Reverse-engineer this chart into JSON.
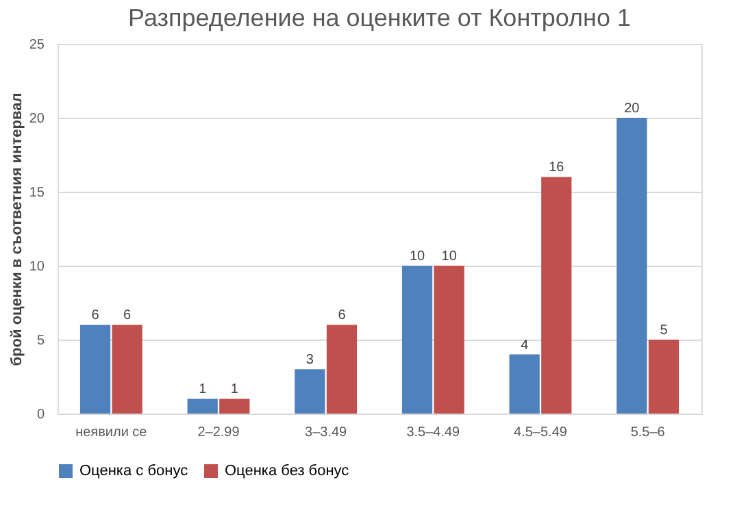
{
  "chart_data": {
    "type": "bar",
    "title": "Разпределение на оценките от Контролно 1",
    "ylabel": "брой оценки в съответния интервал",
    "categories": [
      "неявили се",
      "2–2.99",
      "3–3.49",
      "3.5–4.49",
      "4.5–5.49",
      "5.5–6"
    ],
    "series": [
      {
        "name": "Оценка с бонус",
        "color": "#4f81bd",
        "values": [
          6,
          1,
          3,
          10,
          4,
          20
        ]
      },
      {
        "name": "Оценка без бонус",
        "color": "#c0504d",
        "values": [
          6,
          1,
          6,
          10,
          16,
          5
        ]
      }
    ],
    "ylim": [
      0,
      25
    ],
    "yticks": [
      0,
      5,
      10,
      15,
      20,
      25
    ],
    "grid": "y",
    "legend": "bottom",
    "data_labels": true
  }
}
